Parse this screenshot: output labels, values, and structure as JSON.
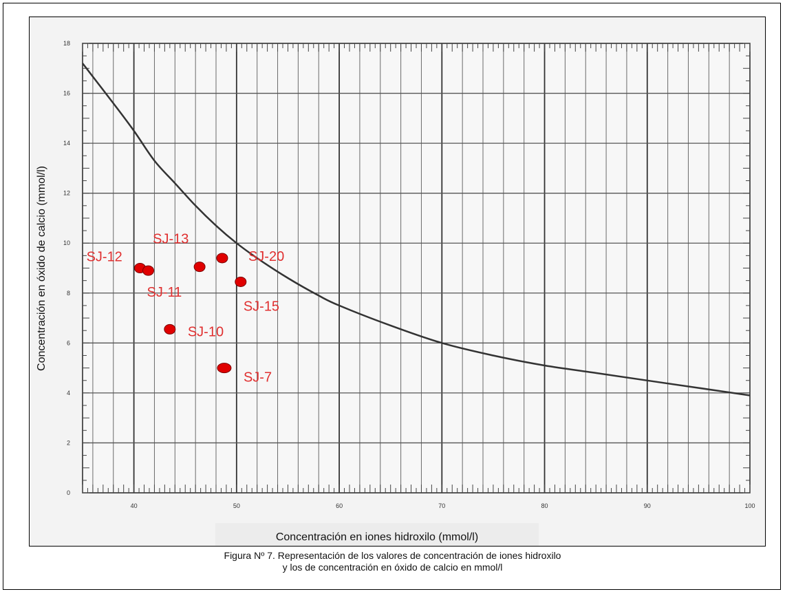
{
  "chart_data": {
    "type": "scatter",
    "xlabel": "Concentración en iones hidroxilo (mmol/l)",
    "ylabel": "Concentración en óxido de calcio (mmol/l)",
    "xlim": [
      35,
      100
    ],
    "ylim": [
      0,
      18
    ],
    "xticks": [
      40,
      50,
      60,
      70,
      80,
      90,
      100
    ],
    "yticks": [
      0,
      2,
      4,
      6,
      8,
      10,
      12,
      14,
      16,
      18
    ],
    "grid": true,
    "points": [
      {
        "label": "SJ-12",
        "x": 40.6,
        "y": 9.0
      },
      {
        "label": "SJ-11",
        "x": 41.4,
        "y": 8.9
      },
      {
        "label": "SJ-13",
        "x": 46.4,
        "y": 9.05
      },
      {
        "label": "SJ-20",
        "x": 48.6,
        "y": 9.4
      },
      {
        "label": "SJ-15",
        "x": 50.4,
        "y": 8.45
      },
      {
        "label": "SJ-10",
        "x": 43.5,
        "y": 6.55
      },
      {
        "label": "SJ-7",
        "x": 48.8,
        "y": 5.0
      }
    ],
    "curve": {
      "x": [
        35,
        38,
        40,
        42,
        44,
        46,
        48,
        50,
        52,
        55,
        58,
        60,
        65,
        70,
        75,
        80,
        85,
        90,
        95,
        100
      ],
      "y": [
        17.2,
        15.6,
        14.5,
        13.3,
        12.4,
        11.5,
        10.7,
        10.0,
        9.4,
        8.6,
        7.9,
        7.5,
        6.7,
        6.0,
        5.5,
        5.1,
        4.8,
        4.5,
        4.2,
        3.9
      ]
    },
    "point_color": "#e00000",
    "label_color": "#e03030"
  },
  "caption": {
    "line1": "Figura Nº 7. Representación de los valores de concentración de iones hidroxilo",
    "line2": "y los de concentración en óxido de calcio en mmol/l"
  }
}
